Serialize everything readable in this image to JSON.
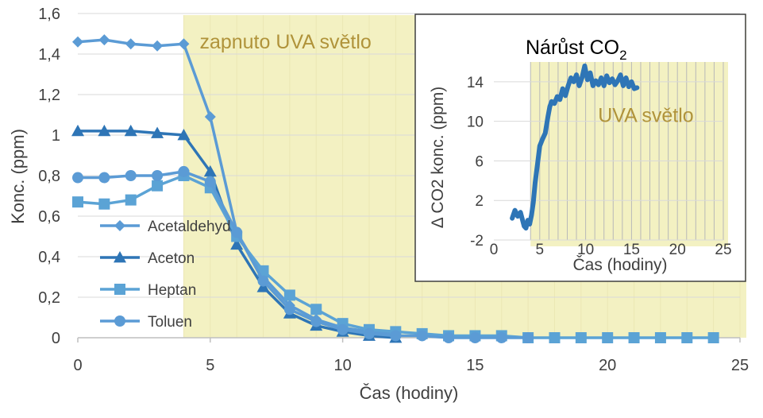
{
  "colors": {
    "uva_band": "#f3f1c2",
    "grid": "#d9d9d9",
    "inset_grid": "#b8b8b8",
    "acetaldehyd": "#5b9bd5",
    "aceton": "#2e75b6",
    "heptan": "#5ba3d5",
    "toluen": "#5b9bd5",
    "co2": "#2e75b6",
    "annotation": "#b0933a",
    "title_text": "#000000"
  },
  "chart_data": [
    {
      "type": "line",
      "title": "",
      "xlabel": "Čas (hodiny)",
      "ylabel": "Konc. (ppm)",
      "xlim": [
        0,
        25
      ],
      "ylim": [
        0,
        1.6
      ],
      "xticks": [
        0,
        5,
        10,
        15,
        20,
        25
      ],
      "xtick_labels": [
        "0",
        "5",
        "10",
        "15",
        "20",
        "25"
      ],
      "yticks": [
        0,
        0.2,
        0.4,
        0.6,
        0.8,
        1,
        1.2,
        1.4,
        1.6
      ],
      "ytick_labels": [
        "0",
        "0,2",
        "0,4",
        "0,6",
        "0,8",
        "1",
        "1,2",
        "1,4",
        "1,6"
      ],
      "grid": true,
      "legend_position": "left",
      "annotation": {
        "text": "zapnuto UVA světlo",
        "x_start": 4,
        "x_end": 25
      },
      "series": [
        {
          "name": "Acetaldehyd",
          "marker": "diamond",
          "x": [
            0,
            1,
            2,
            3,
            4,
            5,
            6,
            7,
            8,
            9,
            10,
            11,
            12
          ],
          "y": [
            1.46,
            1.47,
            1.45,
            1.44,
            1.45,
            1.09,
            0.52,
            0.3,
            0.16,
            0.09,
            0.05,
            0.03,
            0.02
          ]
        },
        {
          "name": "Aceton",
          "marker": "triangle",
          "x": [
            0,
            1,
            2,
            3,
            4,
            5,
            6,
            7,
            8,
            9,
            10,
            11,
            12
          ],
          "y": [
            1.02,
            1.02,
            1.02,
            1.01,
            1.0,
            0.82,
            0.46,
            0.25,
            0.12,
            0.06,
            0.03,
            0.01,
            0.0
          ]
        },
        {
          "name": "Heptan",
          "marker": "square",
          "x": [
            0,
            1,
            2,
            3,
            4,
            5,
            6,
            7,
            8,
            9,
            10,
            11,
            12,
            13,
            14,
            15,
            16,
            17,
            18,
            19,
            20,
            21,
            22,
            23,
            24
          ],
          "y": [
            0.67,
            0.66,
            0.68,
            0.75,
            0.8,
            0.74,
            0.5,
            0.33,
            0.21,
            0.14,
            0.07,
            0.04,
            0.03,
            0.02,
            0.01,
            0.01,
            0.01,
            0.0,
            0.0,
            0.0,
            0.0,
            0.0,
            0.0,
            0.0,
            0.0
          ]
        },
        {
          "name": "Toluen",
          "marker": "circle",
          "x": [
            0,
            1,
            2,
            3,
            4,
            5,
            6,
            7,
            8,
            9,
            10,
            11,
            12,
            13,
            14,
            15,
            16,
            17
          ],
          "y": [
            0.79,
            0.79,
            0.8,
            0.8,
            0.82,
            0.77,
            0.52,
            0.28,
            0.14,
            0.08,
            0.04,
            0.02,
            0.01,
            0.01,
            0.0,
            0.0,
            0.0,
            0.0
          ]
        }
      ]
    },
    {
      "type": "line",
      "title": "Nárůst CO",
      "title_subscript": "2",
      "xlabel": "Čas (hodiny)",
      "ylabel": "Δ CO2 konc. (ppm)",
      "xlim": [
        0,
        25
      ],
      "ylim": [
        -2,
        16
      ],
      "xticks": [
        0,
        5,
        10,
        15,
        20,
        25
      ],
      "xtick_labels": [
        "0",
        "5",
        "10",
        "15",
        "20",
        "25"
      ],
      "yticks": [
        -2,
        2,
        6,
        10,
        14
      ],
      "ytick_labels": [
        "-2",
        "2",
        "6",
        "10",
        "14"
      ],
      "grid": true,
      "annotation": {
        "text": "UVA světlo",
        "x_start": 4,
        "x_end": 25
      },
      "series": [
        {
          "name": "CO2",
          "x": [
            2.0,
            2.3,
            2.6,
            2.9,
            3.1,
            3.3,
            3.5,
            3.7,
            3.9,
            4.1,
            4.3,
            4.5,
            4.8,
            5.0,
            5.3,
            5.6,
            5.9,
            6.1,
            6.3,
            6.6,
            6.9,
            7.2,
            7.5,
            7.8,
            8.1,
            8.4,
            8.7,
            9.0,
            9.3,
            9.6,
            9.9,
            10.2,
            10.5,
            10.8,
            11.1,
            11.4,
            11.7,
            12.0,
            12.3,
            12.6,
            12.9,
            13.2,
            13.5,
            13.8,
            14.1,
            14.4,
            14.7,
            15.0,
            15.3,
            15.6
          ],
          "y": [
            0.2,
            1.0,
            0.4,
            0.8,
            0.1,
            -0.6,
            -0.8,
            0.0,
            -0.4,
            0.5,
            1.8,
            3.8,
            6.0,
            7.5,
            8.2,
            8.8,
            10.5,
            11.5,
            12.0,
            11.8,
            12.5,
            12.2,
            13.3,
            12.6,
            13.6,
            14.4,
            14.0,
            14.7,
            13.6,
            14.4,
            15.6,
            14.2,
            14.9,
            13.6,
            14.1,
            13.7,
            14.4,
            13.6,
            14.6,
            13.9,
            14.3,
            13.7,
            14.1,
            14.7,
            13.6,
            14.4,
            13.5,
            14.0,
            13.3,
            13.4
          ]
        }
      ]
    }
  ]
}
